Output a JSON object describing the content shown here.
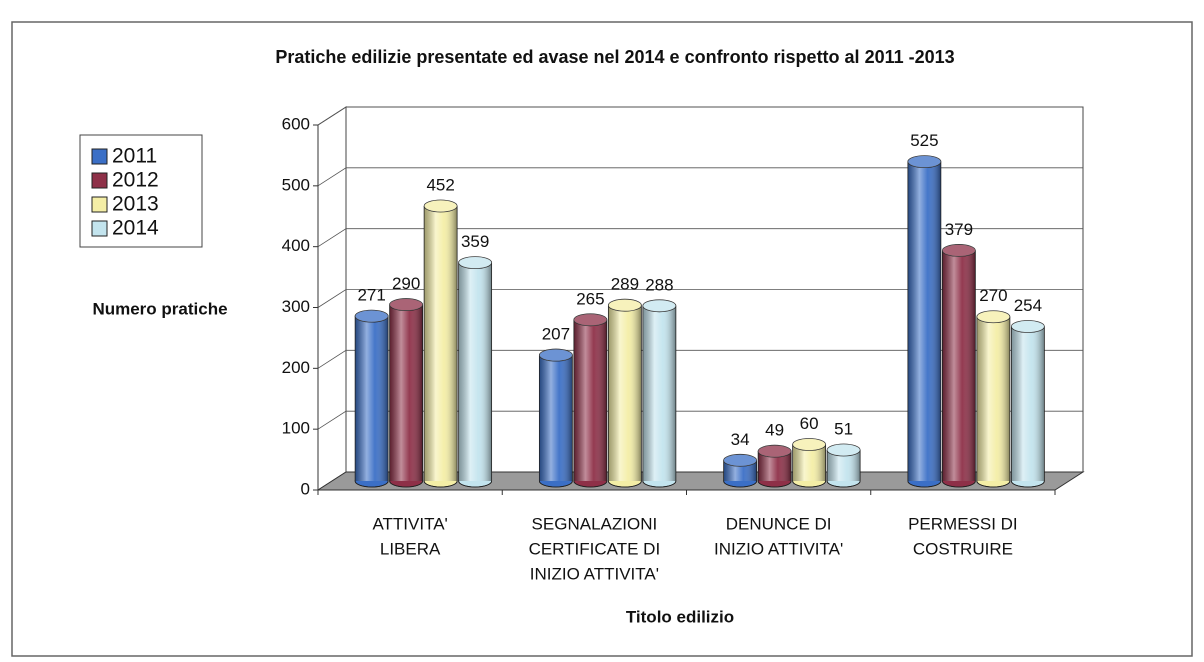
{
  "chart_data": {
    "type": "bar3d",
    "title": "Pratiche edilizie presentate ed avase nel 2014 e confronto rispetto al 2011 -2013",
    "y_label": "Numero pratiche",
    "x_label": "Titolo edilizio",
    "categories": [
      [
        "ATTIVITA'",
        "LIBERA"
      ],
      [
        "SEGNALAZIONI",
        "CERTIFICATE DI",
        "INIZIO ATTIVITA'"
      ],
      [
        "DENUNCE DI",
        "INIZIO ATTIVITA'"
      ],
      [
        "PERMESSI DI",
        "COSTRUIRE"
      ]
    ],
    "series": [
      {
        "name": "2011",
        "color": "#3b6fc6",
        "values": [
          271,
          207,
          34,
          525
        ]
      },
      {
        "name": "2012",
        "color": "#8e3048",
        "values": [
          290,
          265,
          49,
          379
        ]
      },
      {
        "name": "2013",
        "color": "#f4eea6",
        "values": [
          452,
          289,
          60,
          270
        ]
      },
      {
        "name": "2014",
        "color": "#c3e4ee",
        "values": [
          359,
          288,
          51,
          254
        ]
      }
    ],
    "ylim": [
      0,
      600
    ],
    "yticks": [
      0,
      100,
      200,
      300,
      400,
      500,
      600
    ],
    "grid": true,
    "legend": "left"
  }
}
